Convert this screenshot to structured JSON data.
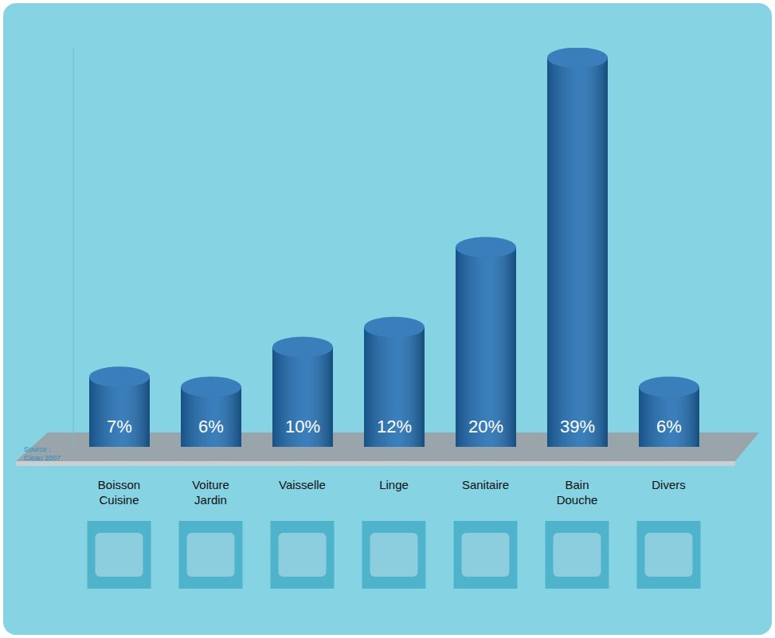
{
  "chart_data": {
    "type": "bar",
    "categories": [
      "Boisson Cuisine",
      "Voiture Jardin",
      "Vaisselle",
      "Linge",
      "Sanitaire",
      "Bain Douche",
      "Divers"
    ],
    "values": [
      7,
      6,
      10,
      12,
      20,
      39,
      6
    ],
    "value_labels": [
      "7%",
      "6%",
      "10%",
      "12%",
      "20%",
      "39%",
      "6%"
    ],
    "data_labels": true,
    "color": "#1f6db3",
    "ylim": [
      0,
      40
    ],
    "yticks": [
      0,
      40
    ],
    "tick_labels": "x",
    "grid": false,
    "annotations": [
      "Source : Cieau 2007"
    ]
  }
}
